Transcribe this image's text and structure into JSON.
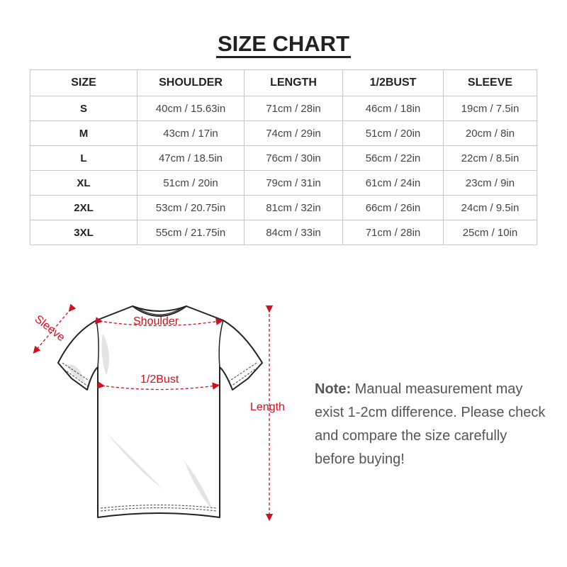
{
  "title": "SIZE CHART",
  "table": {
    "headers": [
      "SIZE",
      "SHOULDER",
      "LENGTH",
      "1/2BUST",
      "SLEEVE"
    ],
    "rows": [
      [
        "S",
        "40cm / 15.63in",
        "71cm / 28in",
        "46cm / 18in",
        "19cm / 7.5in"
      ],
      [
        "M",
        "43cm / 17in",
        "74cm / 29in",
        "51cm / 20in",
        "20cm / 8in"
      ],
      [
        "L",
        "47cm / 18.5in",
        "76cm / 30in",
        "56cm / 22in",
        "22cm / 8.5in"
      ],
      [
        "XL",
        "51cm / 20in",
        "79cm / 31in",
        "61cm / 24in",
        "23cm / 9in"
      ],
      [
        "2XL",
        "53cm / 20.75in",
        "81cm / 32in",
        "66cm / 26in",
        "24cm / 9.5in"
      ],
      [
        "3XL",
        "55cm / 21.75in",
        "84cm / 33in",
        "71cm / 28in",
        "25cm / 10in"
      ]
    ]
  },
  "diagram": {
    "labels": {
      "sleeve": "Sleeve",
      "shoulder": "Shoulder",
      "bust": "1/2Bust",
      "length": "Length"
    },
    "accent_color": "#d0101e"
  },
  "note": {
    "label": "Note:",
    "text": " Manual measurement may exist 1-2cm difference. Please check and compare the size carefully before buying!"
  }
}
